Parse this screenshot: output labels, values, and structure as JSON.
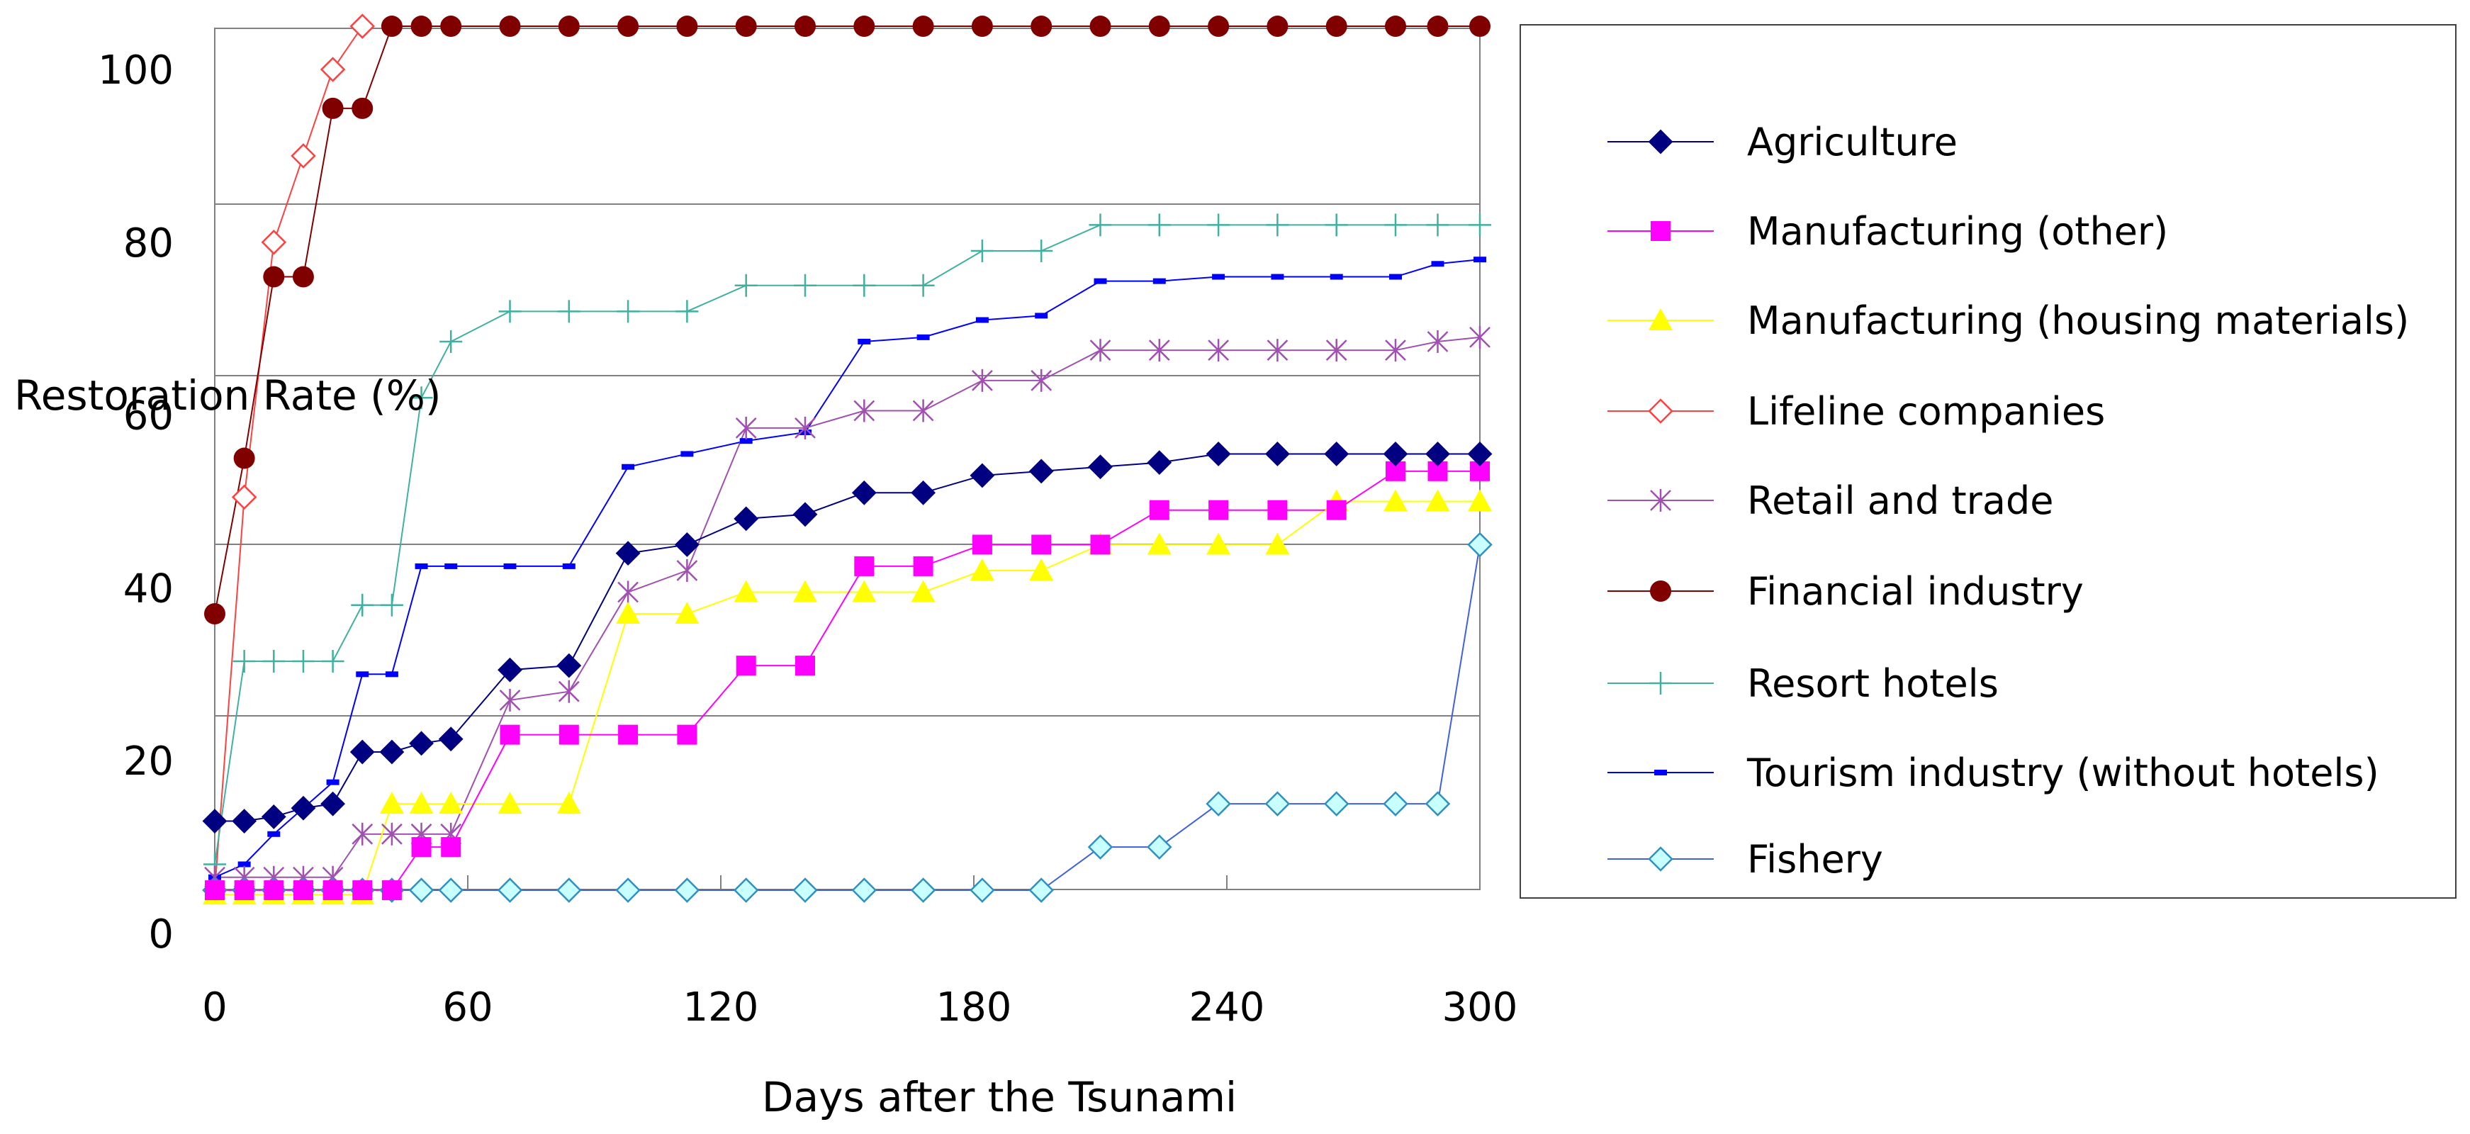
{
  "chart_data": {
    "type": "line",
    "title": "",
    "xlabel": "Days after the Tsunami",
    "ylabel": "Restoration Rate (%)",
    "xlim": [
      0,
      300
    ],
    "ylim": [
      0,
      105
    ],
    "xticks": [
      0,
      60,
      120,
      180,
      240,
      300
    ],
    "yticks": [
      0,
      20,
      40,
      60,
      80,
      100
    ],
    "legend_position": "right",
    "series": [
      {
        "name": "Agriculture",
        "color": "#000080",
        "marker": "diamond-filled",
        "x": [
          0,
          7,
          14,
          21,
          28,
          35,
          42,
          49,
          56,
          70,
          84,
          98,
          112,
          126,
          140,
          154,
          168,
          182,
          196,
          210,
          224,
          238,
          252,
          266,
          280,
          290,
          300
        ],
        "y": [
          13,
          13,
          13.5,
          14.5,
          15,
          21,
          21,
          22,
          22.5,
          30.5,
          31,
          44,
          45,
          48,
          48.5,
          51,
          51,
          53,
          53.5,
          54,
          54.5,
          55.5,
          55.5,
          55.5,
          55.5,
          55.5,
          55.5
        ]
      },
      {
        "name": "Manufacturing (other)",
        "color": "#FF00FF",
        "marker": "square-filled",
        "x": [
          0,
          7,
          14,
          21,
          28,
          35,
          42,
          49,
          56,
          70,
          84,
          98,
          112,
          126,
          140,
          154,
          168,
          182,
          196,
          210,
          224,
          238,
          252,
          266,
          280,
          290,
          300
        ],
        "y": [
          5,
          5,
          5,
          5,
          5,
          5,
          5,
          10,
          10,
          23,
          23,
          23,
          23,
          31,
          31,
          42.5,
          42.5,
          45,
          45,
          45,
          49,
          49,
          49,
          49,
          53.5,
          53.5,
          53.5
        ]
      },
      {
        "name": "Manufacturing (housing materials)",
        "color": "#FFFF00",
        "marker": "triangle-filled",
        "x": [
          0,
          7,
          14,
          21,
          28,
          35,
          42,
          49,
          56,
          70,
          84,
          98,
          112,
          126,
          140,
          154,
          168,
          182,
          196,
          210,
          224,
          238,
          252,
          266,
          280,
          290,
          300
        ],
        "y": [
          4.5,
          4.5,
          4.5,
          4.5,
          4.5,
          4.5,
          15,
          15,
          15,
          15,
          15,
          37,
          37,
          39.5,
          39.5,
          39.5,
          39.5,
          42,
          42,
          45,
          45,
          45,
          45,
          50,
          50,
          50,
          50
        ]
      },
      {
        "name": "Lifeline companies",
        "color": "#FF4040",
        "marker": "diamond-open",
        "x": [
          0,
          7,
          14,
          21,
          28,
          35
        ],
        "y": [
          5,
          50.5,
          80,
          90,
          100,
          105
        ]
      },
      {
        "name": "Retail and trade",
        "color": "#A050B0",
        "marker": "asterisk",
        "x": [
          0,
          7,
          14,
          21,
          28,
          35,
          42,
          49,
          56,
          70,
          84,
          98,
          112,
          126,
          140,
          154,
          168,
          182,
          196,
          210,
          224,
          238,
          252,
          266,
          280,
          290,
          300
        ],
        "y": [
          6.5,
          6.5,
          6.5,
          6.5,
          6.5,
          11.5,
          11.5,
          11.5,
          11.5,
          27,
          28,
          39.5,
          42,
          58.5,
          58.5,
          60.5,
          60.5,
          64,
          64,
          67.5,
          67.5,
          67.5,
          67.5,
          67.5,
          67.5,
          68.5,
          69
        ]
      },
      {
        "name": "Financial industry",
        "color": "#800000",
        "marker": "circle-filled",
        "x": [
          0,
          7,
          14,
          21,
          28,
          35,
          42,
          49,
          56,
          70,
          84,
          98,
          112,
          126,
          140,
          154,
          168,
          182,
          196,
          210,
          224,
          238,
          252,
          266,
          280,
          290,
          300
        ],
        "y": [
          37,
          55,
          76,
          76,
          95.5,
          95.5,
          105,
          105,
          105,
          105,
          105,
          105,
          105,
          105,
          105,
          105,
          105,
          105,
          105,
          105,
          105,
          105,
          105,
          105,
          105,
          105,
          105
        ]
      },
      {
        "name": "Resort hotels",
        "color": "#40B0A0",
        "marker": "plus",
        "x": [
          0,
          7,
          14,
          21,
          28,
          35,
          42,
          49,
          56,
          70,
          84,
          98,
          112,
          126,
          140,
          154,
          168,
          182,
          196,
          210,
          224,
          238,
          252,
          266,
          280,
          290,
          300
        ],
        "y": [
          8,
          31.5,
          31.5,
          31.5,
          31.5,
          38,
          38,
          62,
          68.5,
          72,
          72,
          72,
          72,
          75,
          75,
          75,
          75,
          79,
          79,
          82,
          82,
          82,
          82,
          82,
          82,
          82,
          82
        ]
      },
      {
        "name": "Tourism industry (without hotels)",
        "color": "#0000FF",
        "marker": "dash",
        "x": [
          0,
          7,
          14,
          21,
          28,
          35,
          42,
          49,
          56,
          70,
          84,
          98,
          112,
          126,
          140,
          154,
          168,
          182,
          196,
          210,
          224,
          238,
          252,
          266,
          280,
          290,
          300
        ],
        "y": [
          6.5,
          8,
          11.5,
          14.5,
          17.5,
          30,
          30,
          42.5,
          42.5,
          42.5,
          42.5,
          54,
          55.5,
          57,
          58,
          68.5,
          69,
          71,
          71.5,
          75.5,
          75.5,
          76,
          76,
          76,
          76,
          77.5,
          78
        ]
      },
      {
        "name": "Fishery",
        "color": "#4060E0",
        "marker": "diamond-open-cyan",
        "x": [
          0,
          7,
          14,
          21,
          28,
          35,
          42,
          49,
          56,
          70,
          84,
          98,
          112,
          126,
          140,
          154,
          168,
          182,
          196,
          210,
          224,
          238,
          252,
          266,
          280,
          290,
          300
        ],
        "y": [
          5,
          5,
          5,
          5,
          5,
          5,
          5,
          5,
          5,
          5,
          5,
          5,
          5,
          5,
          5,
          5,
          5,
          5,
          5,
          10,
          10,
          15,
          15,
          15,
          15,
          15,
          45
        ]
      }
    ]
  }
}
